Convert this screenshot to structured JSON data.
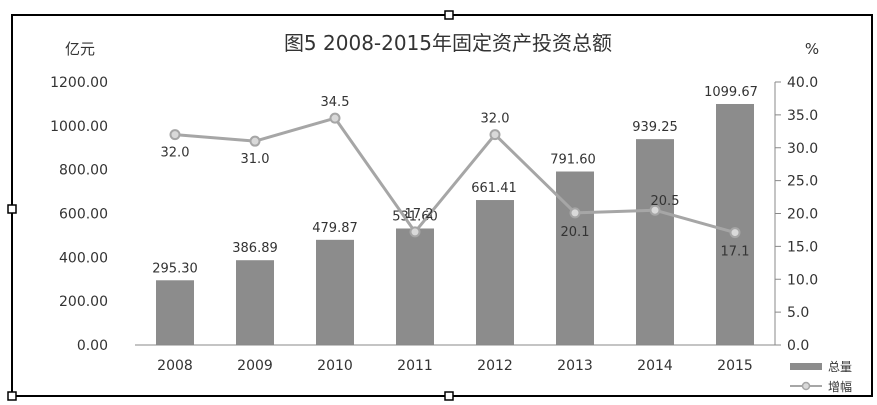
{
  "chart_data": {
    "type": "bar",
    "title": "图5 2008-2015年固定资产投资总额",
    "ylabel": "亿元",
    "y2label": "%",
    "categories": [
      "2008",
      "2009",
      "2010",
      "2011",
      "2012",
      "2013",
      "2014",
      "2015"
    ],
    "ylim": [
      0,
      1200
    ],
    "y2lim": [
      0,
      40
    ],
    "yticks": [
      "0.00",
      "200.00",
      "400.00",
      "600.00",
      "800.00",
      "1000.00",
      "1200.00"
    ],
    "y2ticks": [
      "0.0",
      "5.0",
      "10.0",
      "15.0",
      "20.0",
      "25.0",
      "30.0",
      "35.0",
      "40.0"
    ],
    "grid": false,
    "legend_position": "bottom-right",
    "colors": {
      "bar": "#8c8c8c",
      "line": "#a6a6a6",
      "marker": "#d9d9d9"
    },
    "series": [
      {
        "name": "总量",
        "type": "bar",
        "axis": "left",
        "values": [
          295.3,
          386.89,
          479.87,
          531.6,
          661.41,
          791.6,
          939.25,
          1099.67
        ],
        "labels": [
          "295.30",
          "386.89",
          "479.87",
          "531.60",
          "661.41",
          "791.60",
          "939.25",
          "1099.67"
        ]
      },
      {
        "name": "增幅",
        "type": "line",
        "axis": "right",
        "values": [
          32.0,
          31.0,
          34.5,
          17.2,
          32.0,
          20.1,
          20.5,
          17.1
        ],
        "labels": [
          "32.0",
          "31.0",
          "34.5",
          "17.2",
          "32.0",
          "20.1",
          "20.5",
          "17.1"
        ]
      }
    ]
  }
}
